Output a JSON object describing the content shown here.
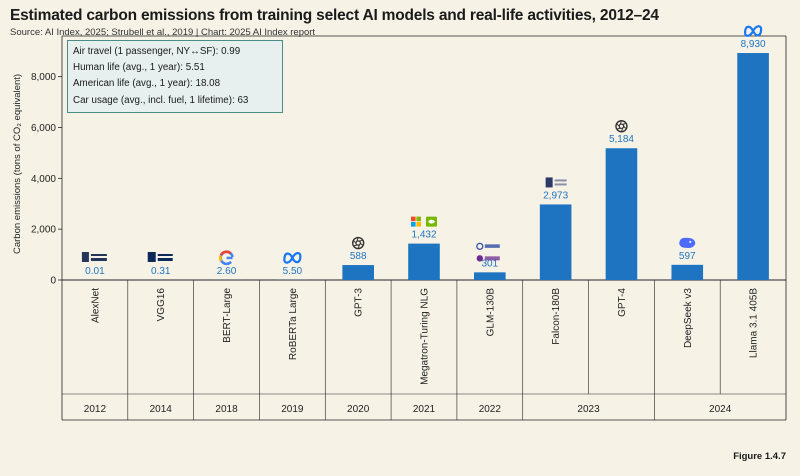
{
  "header": {
    "title": "Estimated carbon emissions from training select AI models and real-life activities, 2012–24",
    "source": "Source: AI Index, 2025; Strubell et al., 2019 | Chart: 2025 AI Index report"
  },
  "footer": {
    "figure_label": "Figure 1.4.7"
  },
  "chart_data": {
    "type": "bar",
    "title": "Estimated carbon emissions from training select AI models and real-life activities, 2012–24",
    "ylabel": "Carbon emissions (tons of CO₂ equivalent)",
    "ylim": [
      0,
      9600
    ],
    "yticks": [
      0,
      2000,
      4000,
      6000,
      8000
    ],
    "ytick_labels": [
      "0",
      "2,000",
      "4,000",
      "6,000",
      "8,000"
    ],
    "grid": false,
    "bar_color": "#1f74c2",
    "label_color": "#1f74c2",
    "categories": [
      "AlexNet",
      "VGG16",
      "BERT-Large",
      "RoBERTa Large",
      "GPT-3",
      "Megatron-Turing NLG",
      "GLM-130B",
      "Falcon-180B",
      "GPT-4",
      "DeepSeek v3",
      "Llama 3.1 405B"
    ],
    "values": [
      0.01,
      0.31,
      2.6,
      5.5,
      588,
      1432,
      301,
      2973,
      5184,
      597,
      8930
    ],
    "value_labels": [
      "0.01",
      "0.31",
      "2.60",
      "5.50",
      "588",
      "1,432",
      "301",
      "2,973",
      "5,184",
      "597",
      "8,930"
    ],
    "organization_logos": [
      "toronto-logo",
      "oxford-logo",
      "google-logo",
      "meta-logo",
      "openai-logo",
      "microsoft-nvidia-logo",
      "zhipu-tsinghua-logo",
      "tii-logo",
      "openai-logo",
      "deepseek-logo",
      "meta-logo"
    ],
    "year_groups": [
      {
        "year": "2012",
        "count": 1
      },
      {
        "year": "2014",
        "count": 1
      },
      {
        "year": "2018",
        "count": 1
      },
      {
        "year": "2019",
        "count": 1
      },
      {
        "year": "2020",
        "count": 1
      },
      {
        "year": "2021",
        "count": 1
      },
      {
        "year": "2022",
        "count": 1
      },
      {
        "year": "2023",
        "count": 2
      },
      {
        "year": "2024",
        "count": 2
      }
    ],
    "reference_activities": [
      {
        "label": "Air travel (1 passenger, NY↔SF): ",
        "value": "0.99"
      },
      {
        "label": "Human life (avg., 1 year): ",
        "value": "5.51"
      },
      {
        "label": "American life (avg., 1 year): ",
        "value": "18.08"
      },
      {
        "label": "Car usage (avg., incl. fuel, 1 lifetime): ",
        "value": "63"
      }
    ],
    "reference_box_color": "#4a8c86"
  }
}
